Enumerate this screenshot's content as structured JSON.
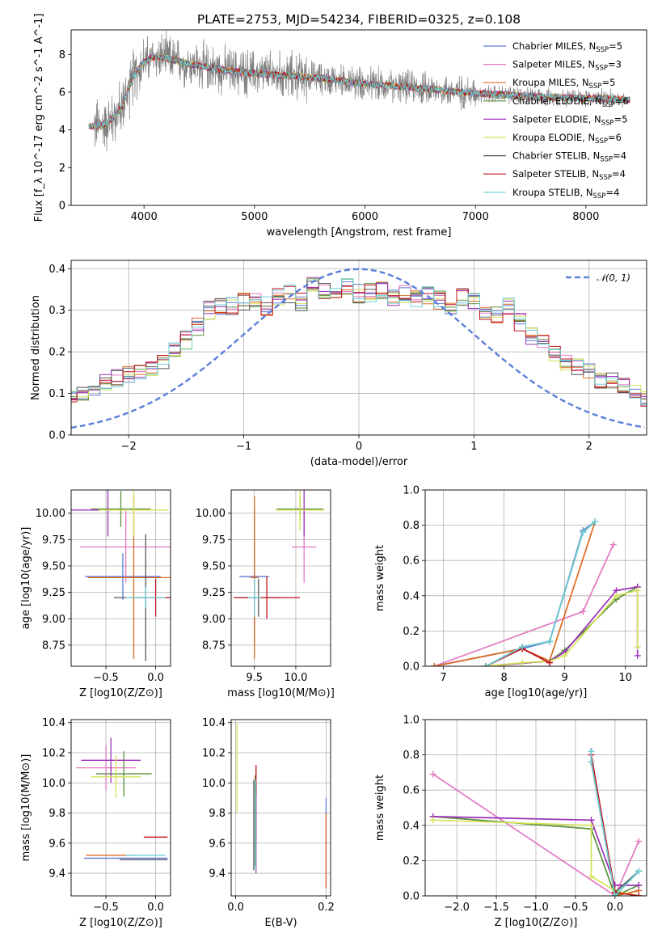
{
  "figure": {
    "title": "PLATE=2753, MJD=54234, FIBERID=0325, z=0.108"
  },
  "models": [
    {
      "name": "Chabrier MILES",
      "nssp": "5",
      "color": "#5b7bd5"
    },
    {
      "name": "Salpeter MILES",
      "nssp": "3",
      "color": "#e377c2"
    },
    {
      "name": "Kroupa MILES",
      "nssp": "5",
      "color": "#dd6a1f"
    },
    {
      "name": "Chabrier ELODIE",
      "nssp": "6",
      "color": "#5a8f3c"
    },
    {
      "name": "Salpeter ELODIE",
      "nssp": "5",
      "color": "#9b30b8"
    },
    {
      "name": "Kroupa ELODIE",
      "nssp": "6",
      "color": "#d4e157"
    },
    {
      "name": "Chabrier STELIB",
      "nssp": "4",
      "color": "#555555"
    },
    {
      "name": "Salpeter STELIB",
      "nssp": "4",
      "color": "#c0101a"
    },
    {
      "name": "Kroupa STELIB",
      "nssp": "4",
      "color": "#6ccfd6"
    }
  ],
  "chart_data": [
    {
      "id": "spectrum",
      "type": "line",
      "title": "PLATE=2753, MJD=54234, FIBERID=0325, z=0.108",
      "xlabel": "wavelength [Angstrom, rest frame]",
      "ylabel": "Flux [f_λ 10^-17 erg cm^-2 s^-1 A^-1]",
      "xlim": [
        3340,
        8550
      ],
      "ylim": [
        0,
        9.3
      ],
      "xticks": [
        "4000",
        "5000",
        "6000",
        "7000",
        "8000"
      ],
      "yticks": [
        "0",
        "2",
        "4",
        "6",
        "8"
      ],
      "grid": false,
      "legend": "top-right",
      "continuum": {
        "x": [
          3550,
          3650,
          3700,
          3800,
          3900,
          4000,
          4100,
          4200,
          4400,
          4600,
          4800,
          5000,
          5200,
          5500,
          5800,
          6000,
          6200,
          6500,
          6800,
          7000,
          7300,
          7600,
          7900,
          8200,
          8350
        ],
        "y": [
          4.2,
          4.3,
          4.5,
          5.2,
          6.8,
          7.6,
          7.9,
          7.8,
          7.5,
          7.3,
          7.1,
          7.0,
          6.9,
          6.8,
          6.6,
          6.45,
          6.35,
          6.2,
          6.05,
          5.95,
          5.85,
          5.75,
          5.7,
          5.65,
          5.6
        ]
      }
    },
    {
      "id": "residuals",
      "type": "histogram",
      "xlabel": "(data-model)/error",
      "ylabel": "Normed distribution",
      "xlim": [
        -2.5,
        2.5
      ],
      "ylim": [
        0,
        0.42
      ],
      "xticks": [
        "−2",
        "−1",
        "0",
        "1",
        "2"
      ],
      "yticks": [
        "0.0",
        "0.1",
        "0.2",
        "0.3",
        "0.4"
      ],
      "grid": true,
      "legend": "top-right",
      "gaussian_label": "𝒩(0, 1)",
      "bin_width": 0.1,
      "mean_hist": [
        0.035,
        0.037,
        0.037,
        0.04,
        0.045,
        0.056,
        0.062,
        0.068,
        0.075,
        0.088,
        0.103,
        0.117,
        0.128,
        0.138,
        0.143,
        0.148,
        0.162,
        0.178,
        0.2,
        0.228,
        0.26,
        0.3,
        0.306,
        0.31,
        0.32,
        0.33,
        0.31,
        0.33,
        0.34,
        0.32,
        0.36,
        0.345,
        0.35,
        0.355,
        0.34,
        0.342,
        0.345,
        0.33,
        0.34,
        0.325,
        0.335,
        0.325,
        0.31,
        0.33,
        0.32,
        0.3,
        0.29,
        0.31,
        0.27,
        0.24,
        0.22,
        0.2,
        0.175,
        0.165,
        0.152,
        0.135,
        0.128,
        0.115,
        0.1,
        0.09,
        0.08,
        0.072,
        0.065,
        0.058,
        0.052,
        0.048,
        0.046,
        0.042,
        0.04,
        0.037
      ]
    },
    {
      "id": "age-vs-z",
      "type": "errorbar",
      "xlabel": "Z [log10(Z/Z⊙)]",
      "ylabel": "age [log10(age/yr)]",
      "xlim": [
        -0.85,
        0.15
      ],
      "ylim": [
        8.55,
        10.22
      ],
      "xticks": [
        "−0.5",
        "0.0"
      ],
      "yticks": [
        "8.75",
        "9.00",
        "9.25",
        "9.50",
        "9.75",
        "10.00"
      ],
      "grid": true,
      "points": [
        {
          "model": 0,
          "x": -0.33,
          "xerr": 0.38,
          "y": 9.4,
          "yerr": 0.22
        },
        {
          "model": 1,
          "x": -0.3,
          "xerr": 0.46,
          "y": 9.68,
          "yerr": 0.34
        },
        {
          "model": 2,
          "x": -0.22,
          "xerr": 0.46,
          "y": 9.39,
          "yerr": 0.77
        },
        {
          "model": 3,
          "x": -0.35,
          "xerr": 0.3,
          "y": 10.04,
          "yerr": 0.17
        },
        {
          "model": 4,
          "x": -0.48,
          "xerr": 0.4,
          "y": 10.03,
          "yerr": 0.25
        },
        {
          "model": 5,
          "x": -0.22,
          "xerr": 0.35,
          "y": 10.03,
          "yerr": 0.25
        },
        {
          "model": 6,
          "x": -0.1,
          "xerr": 0.32,
          "y": 9.2,
          "yerr": 0.6
        },
        {
          "model": 7,
          "x": 0.0,
          "xerr": 0.2,
          "y": 9.2,
          "yerr": 0.18
        },
        {
          "model": 8,
          "x": -0.1,
          "xerr": 0.2,
          "y": 9.2,
          "yerr": 0.1
        }
      ]
    },
    {
      "id": "age-vs-mass",
      "type": "errorbar",
      "xlabel": "mass [log10(M/M⊙)]",
      "ylabel": "",
      "xlim": [
        9.22,
        10.42
      ],
      "ylim": [
        8.55,
        10.22
      ],
      "xticks": [
        "9.5",
        "10.0"
      ],
      "yticks": [
        "8.75",
        "9.00",
        "9.25",
        "9.50",
        "9.75",
        "10.00"
      ],
      "grid": true,
      "points": [
        {
          "model": 0,
          "x": 9.5,
          "xerr": 0.18,
          "y": 9.4,
          "yerr": 0.65
        },
        {
          "model": 1,
          "x": 10.1,
          "xerr": 0.15,
          "y": 9.68,
          "yerr": 0.34
        },
        {
          "model": 2,
          "x": 9.5,
          "xerr": 0.05,
          "y": 9.39,
          "yerr": 0.77
        },
        {
          "model": 3,
          "x": 10.05,
          "xerr": 0.28,
          "y": 10.04,
          "yerr": 0.12
        },
        {
          "model": 4,
          "x": 10.1,
          "xerr": 0.1,
          "y": 10.03,
          "yerr": 0.25
        },
        {
          "model": 5,
          "x": 10.05,
          "xerr": 0.3,
          "y": 10.03,
          "yerr": 0.2
        },
        {
          "model": 6,
          "x": 9.55,
          "xerr": 0.25,
          "y": 9.2,
          "yerr": 0.18
        },
        {
          "model": 7,
          "x": 9.65,
          "xerr": 0.4,
          "y": 9.2,
          "yerr": 0.2
        },
        {
          "model": 8,
          "x": 9.5,
          "xerr": 0.08,
          "y": 9.2,
          "yerr": 0.18
        }
      ]
    },
    {
      "id": "mass-weight-vs-age",
      "type": "line",
      "xlabel": "age  [log10(age/yr)]",
      "ylabel": "mass weight",
      "xlim": [
        6.7,
        10.35
      ],
      "ylim": [
        0,
        1.0
      ],
      "xticks": [
        "7",
        "8",
        "9",
        "10"
      ],
      "yticks": [
        "0.0",
        "0.2",
        "0.4",
        "0.6",
        "0.8",
        "1.0"
      ],
      "grid": true,
      "series": [
        {
          "model": 0,
          "x": [
            6.85,
            8.3,
            8.75,
            9.3,
            9.5
          ],
          "y": [
            0.0,
            0.1,
            0.14,
            0.77,
            0.82
          ]
        },
        {
          "model": 1,
          "x": [
            6.85,
            9.3,
            9.8
          ],
          "y": [
            0.0,
            0.31,
            0.69
          ]
        },
        {
          "model": 2,
          "x": [
            6.85,
            8.3,
            8.75,
            9.5
          ],
          "y": [
            0.0,
            0.1,
            0.03,
            0.82
          ]
        },
        {
          "model": 3,
          "x": [
            7.7,
            8.75,
            9.0,
            9.85,
            10.2
          ],
          "y": [
            0.0,
            0.03,
            0.09,
            0.38,
            0.45
          ]
        },
        {
          "model": 4,
          "x": [
            7.7,
            8.75,
            9.0,
            9.85,
            10.2,
            10.2
          ],
          "y": [
            0.0,
            0.03,
            0.08,
            0.43,
            0.45,
            0.06
          ]
        },
        {
          "model": 5,
          "x": [
            7.7,
            8.3,
            8.75,
            9.0,
            9.85,
            10.2,
            10.2
          ],
          "y": [
            0.0,
            0.02,
            0.03,
            0.06,
            0.4,
            0.43,
            0.11
          ]
        },
        {
          "model": 6,
          "x": [
            7.7,
            8.3,
            8.75,
            9.3,
            9.5
          ],
          "y": [
            0.0,
            0.11,
            0.14,
            0.76,
            0.82
          ]
        },
        {
          "model": 7,
          "x": [
            7.7,
            8.3,
            8.75
          ],
          "y": [
            0.0,
            0.1,
            0.02
          ]
        },
        {
          "model": 8,
          "x": [
            7.7,
            8.3,
            8.75,
            9.3,
            9.5
          ],
          "y": [
            0.0,
            0.11,
            0.14,
            0.76,
            0.82
          ]
        }
      ]
    },
    {
      "id": "mass-vs-z",
      "type": "errorbar",
      "xlabel": "Z [log10(Z/Z⊙)]",
      "ylabel": "mass [log10(M/M⊙)]",
      "xlim": [
        -0.85,
        0.15
      ],
      "ylim": [
        9.25,
        10.42
      ],
      "xticks": [
        "−0.5",
        "0.0"
      ],
      "yticks": [
        "9.4",
        "9.6",
        "9.8",
        "10.0",
        "10.2",
        "10.4"
      ],
      "grid": true,
      "points": [
        {
          "model": 0,
          "x": -0.3,
          "xerr": 0.42,
          "y": 9.5,
          "yerr": 0.0
        },
        {
          "model": 1,
          "x": -0.5,
          "xerr": 0.3,
          "y": 10.1,
          "yerr": 0.15
        },
        {
          "model": 2,
          "x": -0.45,
          "xerr": 0.25,
          "y": 9.52,
          "yerr": 0.0
        },
        {
          "model": 3,
          "x": -0.32,
          "xerr": 0.28,
          "y": 10.06,
          "yerr": 0.15
        },
        {
          "model": 4,
          "x": -0.45,
          "xerr": 0.3,
          "y": 10.15,
          "yerr": 0.15
        },
        {
          "model": 5,
          "x": -0.4,
          "xerr": 0.25,
          "y": 10.04,
          "yerr": 0.14
        },
        {
          "model": 6,
          "x": -0.12,
          "xerr": 0.24,
          "y": 9.49,
          "yerr": 0.0
        },
        {
          "model": 7,
          "x": 0.0,
          "xerr": 0.12,
          "y": 9.64,
          "yerr": 0.0
        },
        {
          "model": 8,
          "x": -0.1,
          "xerr": 0.2,
          "y": 9.52,
          "yerr": 0.0
        }
      ]
    },
    {
      "id": "mass-vs-ebv",
      "type": "errorbar",
      "xlabel": "E(B-V)",
      "ylabel": "",
      "xlim": [
        -0.01,
        0.21
      ],
      "ylim": [
        9.25,
        10.42
      ],
      "xticks": [
        "0.0",
        "0.2"
      ],
      "yticks": [
        "9.4",
        "9.6",
        "9.8",
        "10.0",
        "10.2",
        "10.4"
      ],
      "grid": true,
      "points": [
        {
          "model": 0,
          "x": 0.2,
          "xerr": 0.0,
          "y": 9.6,
          "yerr": 0.3
        },
        {
          "model": 1,
          "x": 0.045,
          "xerr": 0.0,
          "y": 9.8,
          "yerr": 0.2
        },
        {
          "model": 2,
          "x": 0.2,
          "xerr": 0.0,
          "y": 9.55,
          "yerr": 0.25
        },
        {
          "model": 3,
          "x": 0.043,
          "xerr": 0.0,
          "y": 9.75,
          "yerr": 0.3
        },
        {
          "model": 4,
          "x": 0.045,
          "xerr": 0.0,
          "y": 9.7,
          "yerr": 0.3
        },
        {
          "model": 5,
          "x": 0.003,
          "xerr": 0.0,
          "y": 10.1,
          "yerr": 0.3
        },
        {
          "model": 6,
          "x": 0.04,
          "xerr": 0.0,
          "y": 9.72,
          "yerr": 0.3
        },
        {
          "model": 7,
          "x": 0.045,
          "xerr": 0.0,
          "y": 10.02,
          "yerr": 0.1
        },
        {
          "model": 8,
          "x": 0.044,
          "xerr": 0.0,
          "y": 9.72,
          "yerr": 0.3
        }
      ]
    },
    {
      "id": "mass-weight-vs-z",
      "type": "line",
      "xlabel": "Z [log10(Z/Z⊙)]",
      "ylabel": "mass weight",
      "xlim": [
        -2.4,
        0.4
      ],
      "ylim": [
        0,
        1.0
      ],
      "xticks": [
        "−2.0",
        "−1.5",
        "−1.0",
        "−0.5",
        "0.0"
      ],
      "yticks": [
        "0.0",
        "0.2",
        "0.4",
        "0.6",
        "0.8",
        "1.0"
      ],
      "grid": true,
      "series": [
        {
          "model": 0,
          "x": [
            -0.3,
            -0.3,
            0.0,
            0.3
          ],
          "y": [
            0.82,
            0.76,
            0.0,
            0.14
          ]
        },
        {
          "model": 1,
          "x": [
            -2.3,
            0.0,
            0.3
          ],
          "y": [
            0.69,
            0.0,
            0.31
          ]
        },
        {
          "model": 2,
          "x": [
            -0.3,
            -0.3,
            0.0,
            0.3
          ],
          "y": [
            0.82,
            0.76,
            0.0,
            0.03
          ]
        },
        {
          "model": 3,
          "x": [
            -2.3,
            -0.3,
            0.0,
            0.3
          ],
          "y": [
            0.45,
            0.38,
            0.0,
            0.06
          ]
        },
        {
          "model": 4,
          "x": [
            -2.3,
            -0.3,
            0.0,
            0.3
          ],
          "y": [
            0.45,
            0.43,
            0.06,
            0.06
          ]
        },
        {
          "model": 5,
          "x": [
            -2.3,
            -0.3,
            -0.3,
            0.0,
            0.3
          ],
          "y": [
            0.43,
            0.4,
            0.11,
            0.03,
            0.0
          ]
        },
        {
          "model": 6,
          "x": [
            -0.3,
            -0.3,
            0.0,
            0.3
          ],
          "y": [
            0.82,
            0.76,
            0.02,
            0.14
          ]
        },
        {
          "model": 7,
          "x": [
            -0.3,
            0.0,
            0.3
          ],
          "y": [
            0.8,
            0.02,
            0.0
          ]
        },
        {
          "model": 8,
          "x": [
            -0.3,
            -0.3,
            0.0,
            0.3
          ],
          "y": [
            0.82,
            0.76,
            0.0,
            0.14
          ]
        }
      ]
    }
  ]
}
